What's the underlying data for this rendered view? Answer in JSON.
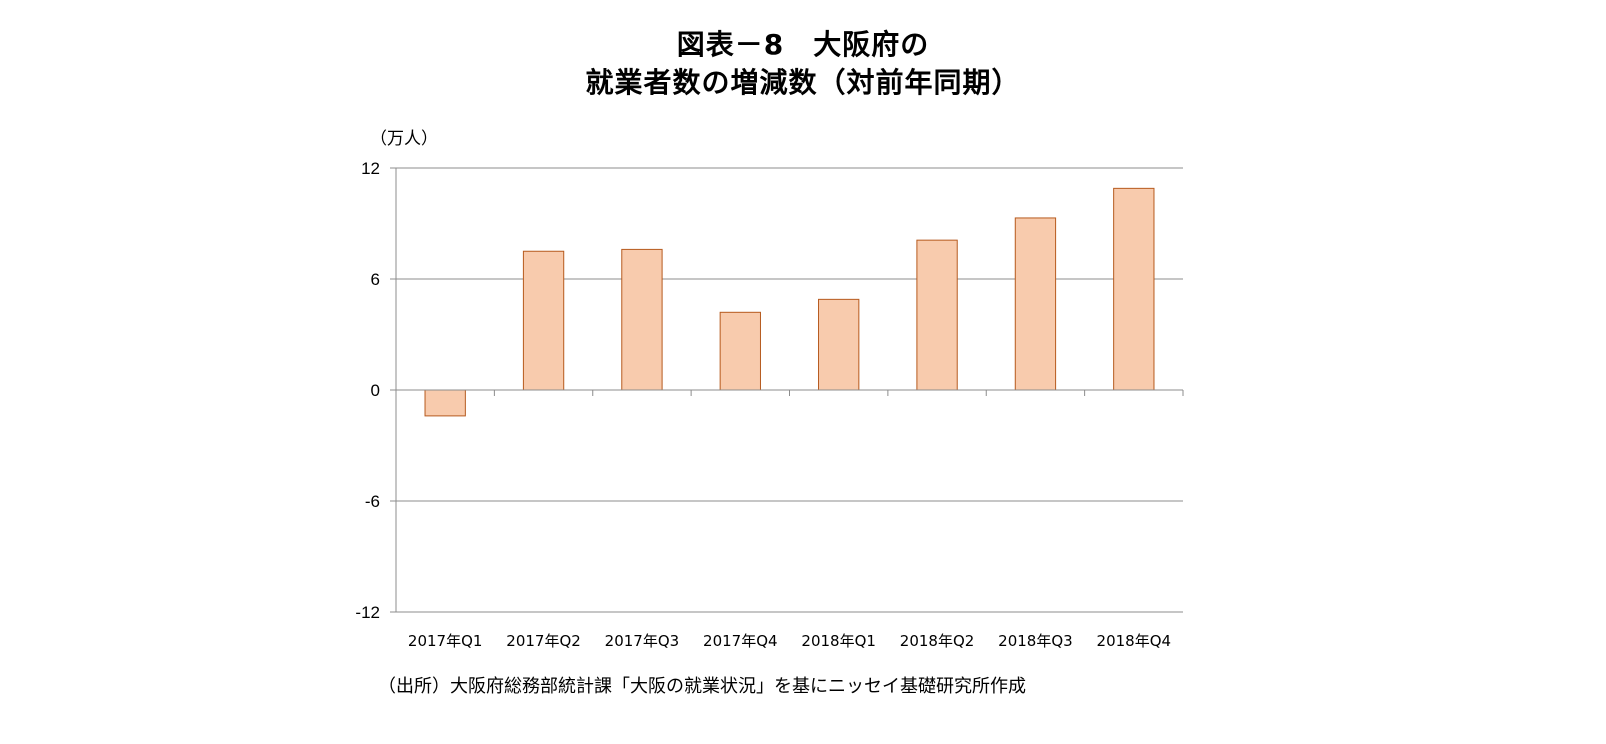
{
  "title": {
    "line1": "図表－8　大阪府の",
    "line2": "就業者数の増減数（対前年同期）"
  },
  "unit_label": "（万人）",
  "source": "（出所）大阪府総務部統計課「大阪の就業状況」を基にニッセイ基礎研究所作成",
  "colors": {
    "bar_fill": "#f8cbad",
    "bar_stroke": "#b65a1e",
    "grid": "#8c8c8c",
    "axis": "#8c8c8c"
  },
  "chart_data": {
    "type": "bar",
    "categories": [
      "2017年Q1",
      "2017年Q2",
      "2017年Q3",
      "2017年Q4",
      "2018年Q1",
      "2018年Q2",
      "2018年Q3",
      "2018年Q4"
    ],
    "values": [
      -1.4,
      7.5,
      7.6,
      4.2,
      4.9,
      8.1,
      9.3,
      10.9
    ],
    "ylim": [
      -12,
      12
    ],
    "yticks": [
      12,
      6,
      0,
      -6,
      -12
    ],
    "grid": true,
    "legend": "none"
  }
}
